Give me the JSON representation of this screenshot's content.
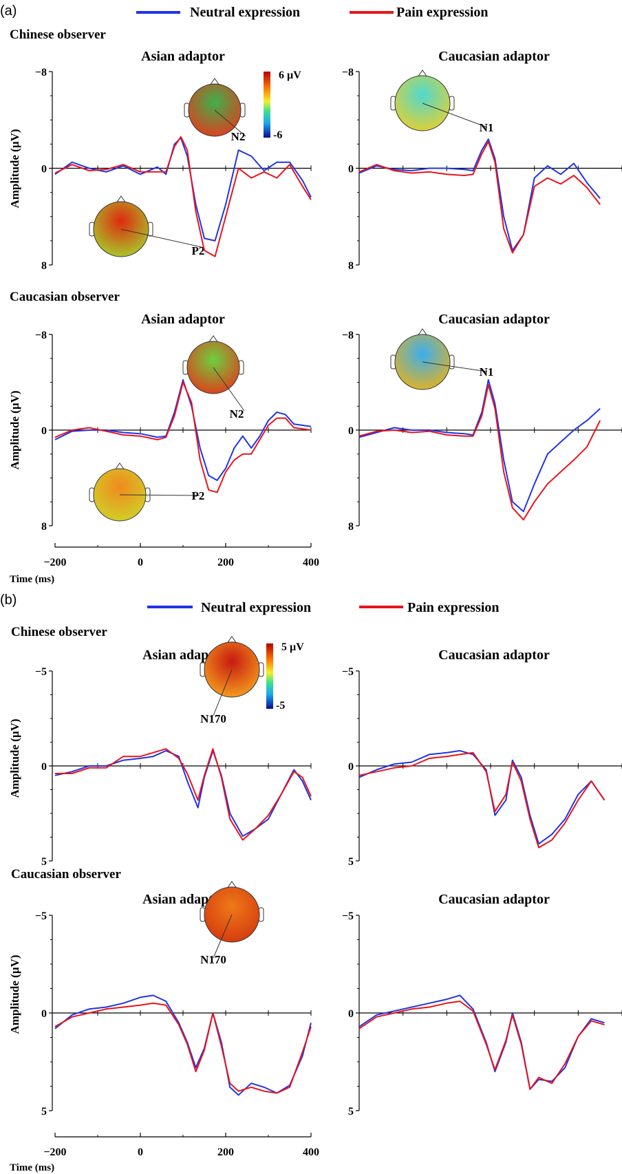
{
  "figure": {
    "colors": {
      "neutral": "#1f35e6",
      "pain": "#e8141c",
      "axis": "#000000"
    }
  },
  "sections": [
    {
      "letter": "(a)",
      "legend": {
        "neutral": "Neutral expression",
        "pain": "Pain expression"
      },
      "observers": [
        {
          "label": "Chinese observer"
        },
        {
          "label": "Caucasian observer"
        }
      ],
      "colorbar": {
        "max_label": "6 µV",
        "min_label": "-6"
      }
    },
    {
      "letter": "(b)",
      "legend": {
        "neutral": "Neutral expression",
        "pain": "Pain expression"
      },
      "observers": [
        {
          "label": "Chinese observer"
        },
        {
          "label": "Caucasian observer"
        }
      ],
      "colorbar": {
        "max_label": "5 µV",
        "min_label": "-5"
      }
    }
  ],
  "x_axis": {
    "title": "Time (ms)",
    "tick_labels": [
      "−200",
      "0",
      "200",
      "400"
    ],
    "ticks": [
      -200,
      0,
      200,
      400
    ]
  },
  "y_axis": {
    "title": "Amplitude (µV)"
  },
  "chart_data": [
    {
      "type": "line",
      "section": "(a)",
      "observer": "Chinese observer",
      "title": "Asian adaptor",
      "ylim": [
        -8,
        8
      ],
      "y_inverted": true,
      "y_tick_labels": [
        "−8",
        "0",
        "8"
      ],
      "y_ticks": [
        -8,
        0,
        8
      ],
      "xlim": [
        -200,
        400
      ],
      "x": [
        -200,
        -160,
        -120,
        -80,
        -40,
        0,
        40,
        60,
        80,
        95,
        110,
        130,
        150,
        175,
        200,
        230,
        260,
        290,
        320,
        350,
        380,
        400
      ],
      "series": [
        {
          "name": "Neutral expression",
          "values": [
            0.5,
            -0.5,
            0,
            0.3,
            -0.2,
            0.5,
            -0.1,
            0.5,
            -2,
            -2.5,
            -1,
            3,
            5.8,
            6,
            3,
            -1.5,
            -1,
            0.2,
            -0.5,
            -0.5,
            1,
            2.4
          ]
        },
        {
          "name": "Pain expression",
          "values": [
            0.4,
            -0.3,
            0.2,
            0.1,
            -0.3,
            0.3,
            0.3,
            0.3,
            -1.8,
            -2.6,
            -1.5,
            3.6,
            6.8,
            7.3,
            4,
            0,
            0.8,
            0.3,
            0.8,
            -0.3,
            1.5,
            2.6
          ]
        }
      ],
      "annotations": [
        {
          "label": "N2",
          "topo": {
            "colors": [
              "#3fb04a",
              "#e53a1e"
            ]
          }
        },
        {
          "label": "P2",
          "topo": {
            "colors": [
              "#dd2a10",
              "#a6d02c"
            ]
          }
        }
      ]
    },
    {
      "type": "line",
      "section": "(a)",
      "observer": "Chinese observer",
      "title": "Caucasian adaptor",
      "ylim": [
        -8,
        8
      ],
      "y_inverted": true,
      "y_tick_labels": [
        "−8",
        "0",
        "8"
      ],
      "y_ticks": [
        -8,
        0,
        8
      ],
      "xlim": [
        -200,
        400
      ],
      "x": [
        -200,
        -160,
        -120,
        -80,
        -40,
        0,
        40,
        60,
        80,
        95,
        110,
        130,
        150,
        175,
        200,
        230,
        260,
        290,
        320,
        350
      ],
      "series": [
        {
          "name": "Neutral expression",
          "values": [
            0.4,
            -0.2,
            0.1,
            0.2,
            0,
            0,
            0.1,
            0.2,
            -1.5,
            -2.4,
            -0.8,
            4,
            6.8,
            5.5,
            0.8,
            -0.2,
            0.5,
            -0.4,
            1.2,
            2.5
          ]
        },
        {
          "name": "Pain expression",
          "values": [
            0.3,
            -0.3,
            0.2,
            0.4,
            0.3,
            0.5,
            0.6,
            0.5,
            -1.2,
            -2.2,
            -0.5,
            5,
            7,
            5.5,
            1.5,
            0.8,
            1.3,
            0.6,
            1.6,
            3
          ]
        }
      ],
      "annotations": [
        {
          "label": "N1",
          "topo": {
            "colors": [
              "#4fd8d0",
              "#e8d02c"
            ]
          }
        }
      ]
    },
    {
      "type": "line",
      "section": "(a)",
      "observer": "Caucasian observer",
      "title": "Asian adaptor",
      "ylim": [
        -8,
        8
      ],
      "y_inverted": true,
      "y_tick_labels": [
        "−8",
        "0",
        "8"
      ],
      "y_ticks": [
        -8,
        0,
        8
      ],
      "xlim": [
        -200,
        400
      ],
      "x": [
        -200,
        -160,
        -120,
        -80,
        -40,
        0,
        40,
        60,
        80,
        100,
        120,
        140,
        160,
        180,
        200,
        220,
        240,
        260,
        280,
        300,
        320,
        340,
        360,
        400
      ],
      "series": [
        {
          "name": "Neutral expression",
          "values": [
            0.8,
            0.1,
            0,
            0,
            0.2,
            0.3,
            0.6,
            0.5,
            -1.5,
            -4.2,
            -2,
            1.5,
            3.8,
            4.2,
            3.2,
            1.5,
            0.5,
            1.5,
            0.5,
            -0.8,
            -1.5,
            -1.3,
            -0.5,
            -0.3
          ]
        },
        {
          "name": "Pain expression",
          "values": [
            0.6,
            0,
            -0.2,
            0.1,
            0.4,
            0.5,
            0.8,
            0.6,
            -1.2,
            -4,
            -2.3,
            2.5,
            5,
            5.2,
            3.5,
            2.5,
            2,
            2,
            0.8,
            -0.4,
            -1,
            -1,
            -0.2,
            0
          ]
        }
      ],
      "annotations": [
        {
          "label": "N2",
          "topo": {
            "colors": [
              "#6cd040",
              "#e33a1a"
            ]
          }
        },
        {
          "label": "P2",
          "topo": {
            "colors": [
              "#f08a1e",
              "#cfd228"
            ]
          }
        }
      ]
    },
    {
      "type": "line",
      "section": "(a)",
      "observer": "Caucasian observer",
      "title": "Caucasian adaptor",
      "ylim": [
        -8,
        8
      ],
      "y_inverted": true,
      "y_tick_labels": [
        "−8",
        "0",
        "8"
      ],
      "y_ticks": [
        -8,
        0,
        8
      ],
      "xlim": [
        -200,
        400
      ],
      "x": [
        -200,
        -160,
        -120,
        -80,
        -40,
        0,
        40,
        60,
        80,
        95,
        110,
        130,
        150,
        175,
        200,
        230,
        260,
        290,
        320,
        350
      ],
      "series": [
        {
          "name": "Neutral expression",
          "values": [
            0.6,
            0.2,
            -0.2,
            0,
            0,
            0.2,
            0.3,
            0.4,
            -1.5,
            -4.2,
            -2.2,
            2.5,
            6,
            6.8,
            4.5,
            2,
            1,
            0,
            -0.8,
            -1.8
          ]
        },
        {
          "name": "Pain expression",
          "values": [
            0.5,
            0.1,
            0,
            0.2,
            0.1,
            0.4,
            0.5,
            0.5,
            -1.2,
            -3.8,
            -1.8,
            3.5,
            6.5,
            7.5,
            6,
            4.5,
            3.5,
            2.5,
            1.4,
            -0.8
          ]
        }
      ],
      "annotations": [
        {
          "label": "N1",
          "topo": {
            "colors": [
              "#3aaef0",
              "#e8b21c"
            ]
          }
        }
      ]
    },
    {
      "type": "line",
      "section": "(b)",
      "observer": "Chinese observer",
      "title": "Asian adaptor",
      "ylim": [
        -5,
        5
      ],
      "y_inverted": true,
      "y_tick_labels": [
        "−5",
        "0",
        "5"
      ],
      "y_ticks": [
        -5,
        0,
        5
      ],
      "xlim": [
        -200,
        400
      ],
      "x": [
        -200,
        -160,
        -120,
        -80,
        -40,
        0,
        30,
        60,
        90,
        110,
        135,
        150,
        170,
        190,
        210,
        240,
        270,
        300,
        330,
        360,
        380,
        400
      ],
      "series": [
        {
          "name": "Neutral expression",
          "values": [
            0.5,
            0.3,
            0,
            0,
            -0.3,
            -0.4,
            -0.5,
            -0.8,
            -0.5,
            0.8,
            2.2,
            0.6,
            -0.8,
            0.5,
            2.5,
            3.7,
            3.3,
            2.8,
            1.5,
            0.2,
            0.8,
            1.8
          ]
        },
        {
          "name": "Pain expression",
          "values": [
            0.4,
            0.4,
            0.1,
            0.1,
            -0.5,
            -0.5,
            -0.7,
            -0.9,
            -0.4,
            0.4,
            1.8,
            0.5,
            -0.9,
            0.6,
            2.8,
            3.9,
            3.3,
            2.6,
            1.5,
            0.3,
            0.6,
            1.6
          ]
        }
      ],
      "annotations": [
        {
          "label": "N170",
          "topo": {
            "colors": [
              "#c81a10",
              "#f6a31e"
            ]
          }
        }
      ]
    },
    {
      "type": "line",
      "section": "(b)",
      "observer": "Chinese observer",
      "title": "Caucasian adaptor",
      "ylim": [
        -5,
        5
      ],
      "y_inverted": true,
      "y_tick_labels": [
        "−5",
        "0",
        "5"
      ],
      "y_ticks": [
        -5,
        0,
        5
      ],
      "xlim": [
        -200,
        400
      ],
      "x": [
        -200,
        -160,
        -120,
        -80,
        -40,
        0,
        30,
        60,
        90,
        110,
        135,
        150,
        170,
        190,
        210,
        240,
        270,
        300,
        330,
        360
      ],
      "series": [
        {
          "name": "Neutral expression",
          "values": [
            0.6,
            0.2,
            -0.1,
            -0.2,
            -0.6,
            -0.7,
            -0.8,
            -0.6,
            0.2,
            2.6,
            1.8,
            -0.3,
            0.6,
            2.6,
            4.1,
            3.6,
            2.8,
            1.5,
            0.8,
            1.8
          ]
        },
        {
          "name": "Pain expression",
          "values": [
            0.5,
            0.3,
            0.1,
            0,
            -0.4,
            -0.5,
            -0.6,
            -0.7,
            0.3,
            2.4,
            1.5,
            -0.2,
            0.8,
            2.8,
            4.3,
            3.9,
            3,
            1.8,
            0.8,
            1.8
          ]
        }
      ]
    },
    {
      "type": "line",
      "section": "(b)",
      "observer": "Caucasian observer",
      "title": "Asian adaptor",
      "ylim": [
        -5,
        5
      ],
      "y_inverted": true,
      "y_tick_labels": [
        "−5",
        "0",
        "5"
      ],
      "y_ticks": [
        -5,
        0,
        5
      ],
      "xlim": [
        -200,
        400
      ],
      "x": [
        -200,
        -160,
        -120,
        -80,
        -40,
        0,
        30,
        60,
        90,
        110,
        130,
        150,
        170,
        190,
        210,
        230,
        260,
        290,
        320,
        350,
        380,
        400
      ],
      "series": [
        {
          "name": "Neutral expression",
          "values": [
            0.8,
            0.1,
            -0.2,
            -0.3,
            -0.5,
            -0.8,
            -0.9,
            -0.6,
            0.5,
            1.5,
            2.8,
            1.8,
            0,
            1.5,
            3.8,
            4.2,
            3.6,
            3.8,
            4.1,
            3.7,
            2.2,
            0.5
          ]
        },
        {
          "name": "Pain expression",
          "values": [
            0.7,
            0.2,
            0,
            -0.2,
            -0.3,
            -0.4,
            -0.5,
            -0.4,
            0.6,
            1.6,
            3,
            1.9,
            0,
            1.7,
            3.6,
            4,
            3.8,
            4,
            4.1,
            3.8,
            2,
            0.7
          ]
        }
      ],
      "annotations": [
        {
          "label": "N170",
          "topo": {
            "colors": [
              "#ee7a18",
              "#d4380e"
            ]
          }
        }
      ]
    },
    {
      "type": "line",
      "section": "(b)",
      "observer": "Caucasian observer",
      "title": "Caucasian adaptor",
      "ylim": [
        -5,
        5
      ],
      "y_inverted": true,
      "y_tick_labels": [
        "−5",
        "0",
        "5"
      ],
      "y_ticks": [
        -5,
        0,
        5
      ],
      "xlim": [
        -200,
        400
      ],
      "x": [
        -200,
        -160,
        -120,
        -80,
        -40,
        0,
        30,
        60,
        90,
        110,
        135,
        150,
        170,
        190,
        210,
        240,
        270,
        300,
        330,
        360
      ],
      "series": [
        {
          "name": "Neutral expression",
          "values": [
            0.7,
            0.1,
            -0.1,
            -0.3,
            -0.5,
            -0.7,
            -0.9,
            -0.2,
            1.5,
            3,
            1.5,
            0,
            1.5,
            3.9,
            3.4,
            3.5,
            2.8,
            1.2,
            0.3,
            0.5
          ]
        },
        {
          "name": "Pain expression",
          "values": [
            0.8,
            0.2,
            0,
            -0.2,
            -0.3,
            -0.5,
            -0.6,
            -0.1,
            1.6,
            2.9,
            1.4,
            0.1,
            1.6,
            3.9,
            3.3,
            3.6,
            2.6,
            1.2,
            0.4,
            0.6
          ]
        }
      ]
    }
  ]
}
